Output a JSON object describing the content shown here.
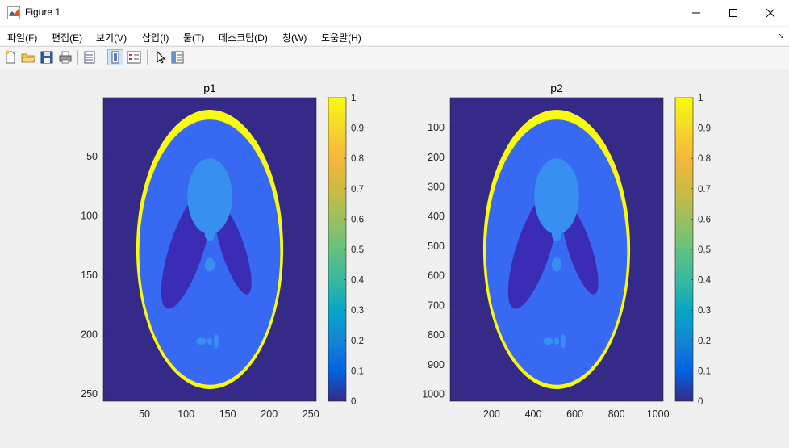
{
  "window": {
    "title": "Figure 1",
    "minimize_icon": "minimize-icon",
    "maximize_icon": "maximize-icon",
    "close_icon": "close-icon"
  },
  "menu": [
    {
      "label": "파일(F)"
    },
    {
      "label": "편집(E)"
    },
    {
      "label": "보기(V)"
    },
    {
      "label": "삽입(I)"
    },
    {
      "label": "툴(T)"
    },
    {
      "label": "데스크탑(D)"
    },
    {
      "label": "창(W)"
    },
    {
      "label": "도움말(H)"
    }
  ],
  "toolbar": [
    "new-figure-icon",
    "open-file-icon",
    "save-icon",
    "print-icon",
    "print-preview-icon",
    "colorbar-toggle-icon",
    "legend-toggle-icon",
    "pointer-icon",
    "property-inspector-icon"
  ],
  "colors": {
    "background": "#352a87",
    "body": "#3869f3",
    "inner_dark": "#3a2cb4",
    "inner_light": "#3790f0",
    "rim": "#f9fb0e"
  },
  "chart_data": [
    {
      "type": "heatmap",
      "title": "p1",
      "x_ticks": [
        "50",
        "100",
        "150",
        "200",
        "250"
      ],
      "y_ticks": [
        "50",
        "100",
        "150",
        "200",
        "250"
      ],
      "xlim": [
        0.5,
        256.5
      ],
      "ylim": [
        0.5,
        256.5
      ],
      "colorbar_ticks": [
        "0",
        "0.1",
        "0.2",
        "0.3",
        "0.4",
        "0.5",
        "0.6",
        "0.7",
        "0.8",
        "0.9",
        "1"
      ],
      "clim": [
        0,
        1
      ],
      "colormap": "parula"
    },
    {
      "type": "heatmap",
      "title": "p2",
      "x_ticks": [
        "200",
        "400",
        "600",
        "800",
        "1000"
      ],
      "y_ticks": [
        "100",
        "200",
        "300",
        "400",
        "500",
        "600",
        "700",
        "800",
        "900",
        "1000"
      ],
      "xlim": [
        0.5,
        1024.5
      ],
      "ylim": [
        0.5,
        1024.5
      ],
      "colorbar_ticks": [
        "0",
        "0.1",
        "0.2",
        "0.3",
        "0.4",
        "0.5",
        "0.6",
        "0.7",
        "0.8",
        "0.9",
        "1"
      ],
      "clim": [
        0,
        1
      ],
      "colormap": "parula"
    }
  ]
}
